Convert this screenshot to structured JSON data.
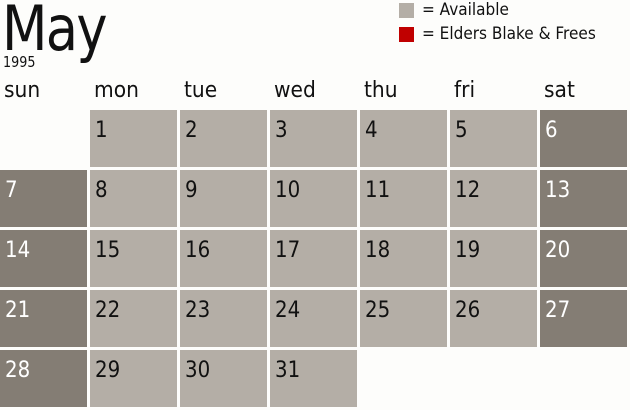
{
  "month": "May",
  "year": "1995",
  "legend": [
    {
      "label": "= Available",
      "color": "#b4aea6"
    },
    {
      "label": "= Elders Blake & Frees",
      "color": "#c00000"
    }
  ],
  "weekdays": [
    "sun",
    "mon",
    "tue",
    "wed",
    "thu",
    "fri",
    "sat"
  ],
  "first_weekday_index": 1,
  "days": [
    "1",
    "2",
    "3",
    "4",
    "5",
    "6",
    "7",
    "8",
    "9",
    "10",
    "11",
    "12",
    "13",
    "14",
    "15",
    "16",
    "17",
    "18",
    "19",
    "20",
    "21",
    "22",
    "23",
    "24",
    "25",
    "26",
    "27",
    "28",
    "29",
    "30",
    "31"
  ],
  "colors": {
    "available": "#b4aea6",
    "weekend": "#847d74",
    "elders": "#c00000"
  }
}
